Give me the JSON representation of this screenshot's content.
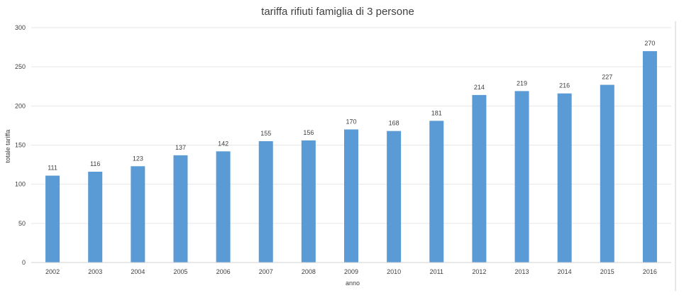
{
  "chart_data": {
    "type": "bar",
    "title": "tariffa rifiuti famiglia di 3 persone",
    "xlabel": "anno",
    "ylabel": "totale tariffa",
    "categories": [
      "2002",
      "2003",
      "2004",
      "2005",
      "2006",
      "2007",
      "2008",
      "2009",
      "2010",
      "2011",
      "2012",
      "2013",
      "2014",
      "2015",
      "2016"
    ],
    "values": [
      111,
      116,
      123,
      137,
      142,
      155,
      156,
      170,
      168,
      181,
      214,
      219,
      216,
      227,
      270
    ],
    "ylim": [
      0,
      300
    ],
    "yticks": [
      0,
      50,
      100,
      150,
      200,
      250,
      300
    ],
    "grid": true,
    "legend": "none",
    "bar_color": "#5b9bd5"
  }
}
